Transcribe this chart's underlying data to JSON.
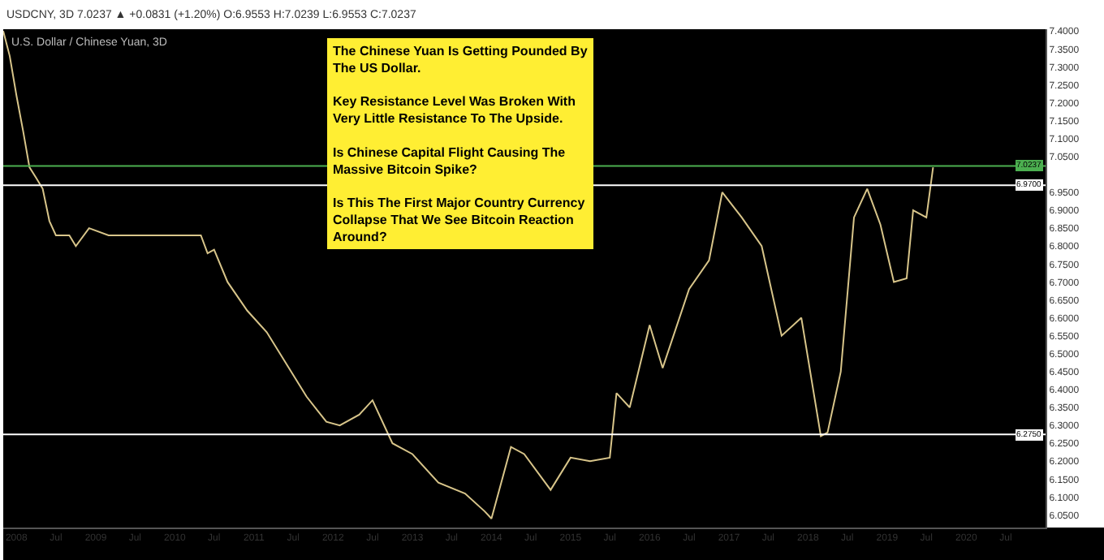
{
  "chart_data": {
    "type": "line",
    "title": "U.S. Dollar / Chinese Yuan, 3D",
    "subtitle": "USDCNY, 3D 7.0237 ▲ +0.0831 (+1.20%) O:6.9553 H:7.0239 L:6.9553 C:7.0237",
    "x": [
      "2007-11",
      "2007-12",
      "2008-01",
      "2008-02",
      "2008-03",
      "2008-04",
      "2008-05",
      "2008-06",
      "2008-07",
      "2008-09",
      "2008-10",
      "2008-12",
      "2009-03",
      "2009-06",
      "2009-10",
      "2010-01",
      "2010-05",
      "2010-06",
      "2010-07",
      "2010-09",
      "2010-12",
      "2011-03",
      "2011-06",
      "2011-09",
      "2011-12",
      "2012-02",
      "2012-05",
      "2012-07",
      "2012-10",
      "2013-01",
      "2013-05",
      "2013-09",
      "2013-12",
      "2014-01",
      "2014-04",
      "2014-06",
      "2014-10",
      "2015-01",
      "2015-04",
      "2015-07",
      "2015-08",
      "2015-10",
      "2016-01",
      "2016-03",
      "2016-07",
      "2016-10",
      "2016-12",
      "2017-03",
      "2017-06",
      "2017-09",
      "2017-12",
      "2018-03",
      "2018-04",
      "2018-06",
      "2018-08",
      "2018-10",
      "2018-12",
      "2019-02",
      "2019-04",
      "2019-05",
      "2019-07",
      "2019-08"
    ],
    "series": [
      {
        "color": "#d8c58a",
        "values": [
          7.4,
          7.33,
          7.22,
          7.12,
          7.02,
          6.99,
          6.96,
          6.87,
          6.83,
          6.83,
          6.8,
          6.85,
          6.83,
          6.83,
          6.83,
          6.83,
          6.83,
          6.78,
          6.79,
          6.7,
          6.62,
          6.56,
          6.47,
          6.38,
          6.31,
          6.3,
          6.33,
          6.37,
          6.25,
          6.22,
          6.14,
          6.11,
          6.06,
          6.04,
          6.24,
          6.22,
          6.12,
          6.21,
          6.2,
          6.21,
          6.39,
          6.35,
          6.58,
          6.46,
          6.68,
          6.76,
          6.95,
          6.88,
          6.8,
          6.55,
          6.6,
          6.27,
          6.28,
          6.45,
          6.88,
          6.96,
          6.86,
          6.7,
          6.71,
          6.9,
          6.88,
          7.02
        ]
      }
    ],
    "xlim": [
      "2007-11-01",
      "2021-01-01"
    ],
    "xticks": [
      {
        "value": "2008-01-01",
        "label": "2008"
      },
      {
        "value": "2008-07-01",
        "label": "Jul"
      },
      {
        "value": "2009-01-01",
        "label": "2009"
      },
      {
        "value": "2009-07-01",
        "label": "Jul"
      },
      {
        "value": "2010-01-01",
        "label": "2010"
      },
      {
        "value": "2010-07-01",
        "label": "Jul"
      },
      {
        "value": "2011-01-01",
        "label": "2011"
      },
      {
        "value": "2011-07-01",
        "label": "Jul"
      },
      {
        "value": "2012-01-01",
        "label": "2012"
      },
      {
        "value": "2012-07-01",
        "label": "Jul"
      },
      {
        "value": "2013-01-01",
        "label": "2013"
      },
      {
        "value": "2013-07-01",
        "label": "Jul"
      },
      {
        "value": "2014-01-01",
        "label": "2014"
      },
      {
        "value": "2014-07-01",
        "label": "Jul"
      },
      {
        "value": "2015-01-01",
        "label": "2015"
      },
      {
        "value": "2015-07-01",
        "label": "Jul"
      },
      {
        "value": "2016-01-01",
        "label": "2016"
      },
      {
        "value": "2016-07-01",
        "label": "Jul"
      },
      {
        "value": "2017-01-01",
        "label": "2017"
      },
      {
        "value": "2017-07-01",
        "label": "Jul"
      },
      {
        "value": "2018-01-01",
        "label": "2018"
      },
      {
        "value": "2018-07-01",
        "label": "Jul"
      },
      {
        "value": "2019-01-01",
        "label": "2019"
      },
      {
        "value": "2019-07-01",
        "label": "Jul"
      },
      {
        "value": "2020-01-01",
        "label": "2020"
      },
      {
        "value": "2020-07-01",
        "label": "Jul"
      }
    ],
    "ylim": [
      6.015,
      7.405
    ],
    "yticks": [
      {
        "value": 6.05,
        "label": "6.0500"
      },
      {
        "value": 6.1,
        "label": "6.1000"
      },
      {
        "value": 6.15,
        "label": "6.1500"
      },
      {
        "value": 6.2,
        "label": "6.2000"
      },
      {
        "value": 6.25,
        "label": "6.2500"
      },
      {
        "value": 6.3,
        "label": "6.3000"
      },
      {
        "value": 6.35,
        "label": "6.3500"
      },
      {
        "value": 6.4,
        "label": "6.4000"
      },
      {
        "value": 6.45,
        "label": "6.4500"
      },
      {
        "value": 6.5,
        "label": "6.5000"
      },
      {
        "value": 6.55,
        "label": "6.5500"
      },
      {
        "value": 6.6,
        "label": "6.6000"
      },
      {
        "value": 6.65,
        "label": "6.6500"
      },
      {
        "value": 6.7,
        "label": "6.7000"
      },
      {
        "value": 6.75,
        "label": "6.7500"
      },
      {
        "value": 6.8,
        "label": "6.8000"
      },
      {
        "value": 6.85,
        "label": "6.8500"
      },
      {
        "value": 6.9,
        "label": "6.9000"
      },
      {
        "value": 6.95,
        "label": "6.9500"
      },
      {
        "value": 7.05,
        "label": "7.0500"
      },
      {
        "value": 7.1,
        "label": "7.1000"
      },
      {
        "value": 7.15,
        "label": "7.1500"
      },
      {
        "value": 7.2,
        "label": "7.2000"
      },
      {
        "value": 7.25,
        "label": "7.2500"
      },
      {
        "value": 7.3,
        "label": "7.3000"
      },
      {
        "value": 7.35,
        "label": "7.3500"
      },
      {
        "value": 7.4,
        "label": "7.4000"
      }
    ],
    "ref_lines": [
      {
        "axis": "y",
        "value": 7.0237,
        "label": "7.0237",
        "color": "#4caf50"
      },
      {
        "axis": "y",
        "value": 6.97,
        "label": "6.9700",
        "color": "#ffffff"
      },
      {
        "axis": "y",
        "value": 6.275,
        "label": "6.2750",
        "color": "#ffffff"
      }
    ],
    "annotations": [
      "The Chinese Yuan Is Getting Pounded By\nThe US Dollar.\n\nKey Resistance Level Was Broken With\nVery Little Resistance To The Upside.\n\nIs Chinese Capital Flight Causing The\nMassive Bitcoin Spike?\n\nIs This The First Major Country Currency\nCollapse That We See Bitcoin Reaction\nAround?"
    ],
    "grid": false
  }
}
